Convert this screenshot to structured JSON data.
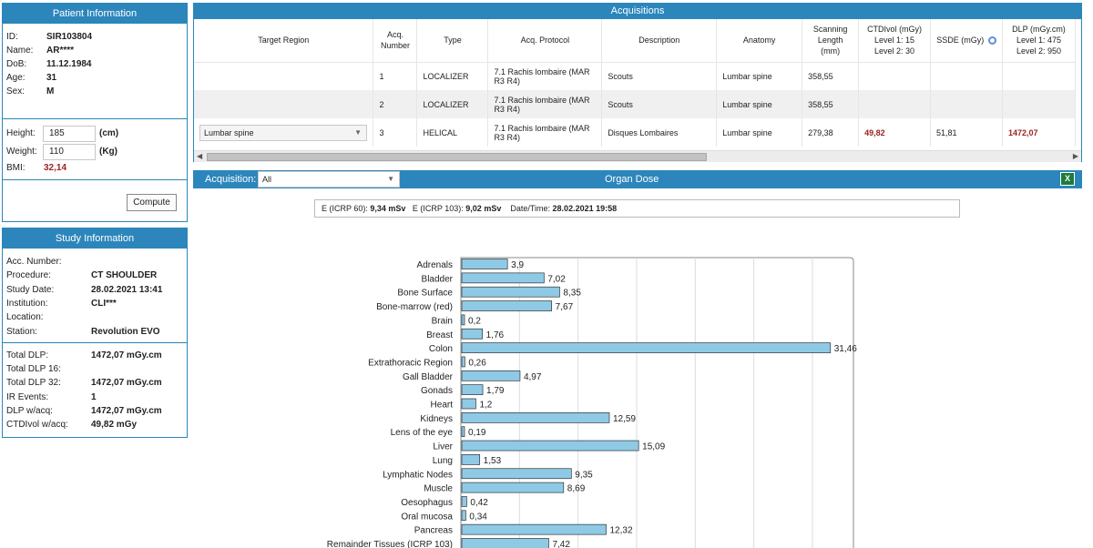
{
  "patient": {
    "title": "Patient Information",
    "fields": [
      {
        "k": "ID:",
        "v": "SIR103804"
      },
      {
        "k": "Name:",
        "v": "AR****"
      },
      {
        "k": "DoB:",
        "v": "11.12.1984"
      },
      {
        "k": "Age:",
        "v": "31"
      },
      {
        "k": "Sex:",
        "v": "M"
      }
    ],
    "height_label": "Height:",
    "height_value": "185",
    "height_unit": "(cm)",
    "weight_label": "Weight:",
    "weight_value": "110",
    "weight_unit": "(Kg)",
    "bmi_label": "BMI:",
    "bmi_value": "32,14",
    "compute_label": "Compute"
  },
  "study": {
    "title": "Study Information",
    "fields": [
      {
        "k": "Acc. Number:",
        "v": ""
      },
      {
        "k": "Procedure:",
        "v": "CT SHOULDER"
      },
      {
        "k": "Study Date:",
        "v": "28.02.2021 13:41"
      },
      {
        "k": "Institution:",
        "v": "CLI***"
      },
      {
        "k": "Location:",
        "v": ""
      },
      {
        "k": "Station:",
        "v": "Revolution EVO"
      }
    ],
    "totals": [
      {
        "k": "Total DLP:",
        "v": "1472,07 mGy.cm"
      },
      {
        "k": "Total DLP 16:",
        "v": ""
      },
      {
        "k": "Total DLP 32:",
        "v": "1472,07 mGy.cm"
      },
      {
        "k": "IR Events:",
        "v": "1"
      },
      {
        "k": "DLP w/acq:",
        "v": "1472,07 mGy.cm"
      },
      {
        "k": "CTDIvol w/acq:",
        "v": "49,82 mGy"
      }
    ]
  },
  "acquisitions": {
    "title": "Acquisitions",
    "headers": {
      "target": "Target Region",
      "acq1": "Acq.",
      "acq2": "Number",
      "type": "Type",
      "protocol": "Acq. Protocol",
      "description": "Description",
      "anatomy": "Anatomy",
      "scan1": "Scanning",
      "scan2": "Length",
      "scan3": "(mm)",
      "ctdi1": "CTDIvol (mGy)",
      "ctdi2": "Level 1: 15",
      "ctdi3": "Level 2: 30",
      "ssde": "SSDE (mGy)",
      "dlp1": "DLP (mGy.cm)",
      "dlp2": "Level 1: 475",
      "dlp3": "Level 2: 950"
    },
    "rows": [
      {
        "target": "",
        "num": "1",
        "type": "LOCALIZER",
        "p1": "7.1 Rachis lombaire (MAR",
        "p2": "R3 R4)",
        "desc": "Scouts",
        "anat": "Lumbar spine",
        "len": "358,55",
        "ctdi": "",
        "ssde": "",
        "dlp": ""
      },
      {
        "target": "",
        "num": "2",
        "type": "LOCALIZER",
        "p1": "7.1 Rachis lombaire (MAR",
        "p2": "R3 R4)",
        "desc": "Scouts",
        "anat": "Lumbar spine",
        "len": "358,55",
        "ctdi": "",
        "ssde": "",
        "dlp": ""
      },
      {
        "target": "Lumbar spine",
        "num": "3",
        "type": "HELICAL",
        "p1": "7.1 Rachis lombaire (MAR",
        "p2": "R3 R4)",
        "desc": "Disques Lombaires",
        "anat": "Lumbar spine",
        "len": "279,38",
        "ctdi": "49,82",
        "ssde": "51,81",
        "dlp": "1472,07"
      }
    ]
  },
  "organ": {
    "acq_label": "Acquisition:",
    "acq_value": "All",
    "title": "Organ Dose",
    "summary": {
      "e60_label": "E (ICRP 60):",
      "e60": "9,34 mSv",
      "e103_label": "E (ICRP 103):",
      "e103": "9,02 mSv",
      "dt_label": "Date/Time:",
      "dt": "28.02.2021 19:58"
    }
  },
  "chart_data": {
    "type": "bar",
    "orientation": "horizontal",
    "categories": [
      "Adrenals",
      "Bladder",
      "Bone Surface",
      "Bone-marrow (red)",
      "Brain",
      "Breast",
      "Colon",
      "Extrathoracic Region",
      "Gall Bladder",
      "Gonads",
      "Heart",
      "Kidneys",
      "Lens of the eye",
      "Liver",
      "Lung",
      "Lymphatic Nodes",
      "Muscle",
      "Oesophagus",
      "Oral mucosa",
      "Pancreas",
      "Remainder Tissues (ICRP 103)"
    ],
    "values": [
      3.9,
      7.02,
      8.35,
      7.67,
      0.2,
      1.76,
      31.46,
      0.26,
      4.97,
      1.79,
      1.2,
      12.59,
      0.19,
      15.09,
      1.53,
      9.35,
      8.69,
      0.42,
      0.34,
      12.32,
      7.42
    ],
    "labels": [
      "3,9",
      "7,02",
      "8,35",
      "7,67",
      "0,2",
      "1,76",
      "31,46",
      "0,26",
      "4,97",
      "1,79",
      "1,2",
      "12,59",
      "0,19",
      "15,09",
      "1,53",
      "9,35",
      "8,69",
      "0,42",
      "0,34",
      "12,32",
      "7,42"
    ],
    "bar_color": "#8ecae6"
  },
  "colors": {
    "accent": "#2c86bb",
    "warn": "#9b2222"
  }
}
